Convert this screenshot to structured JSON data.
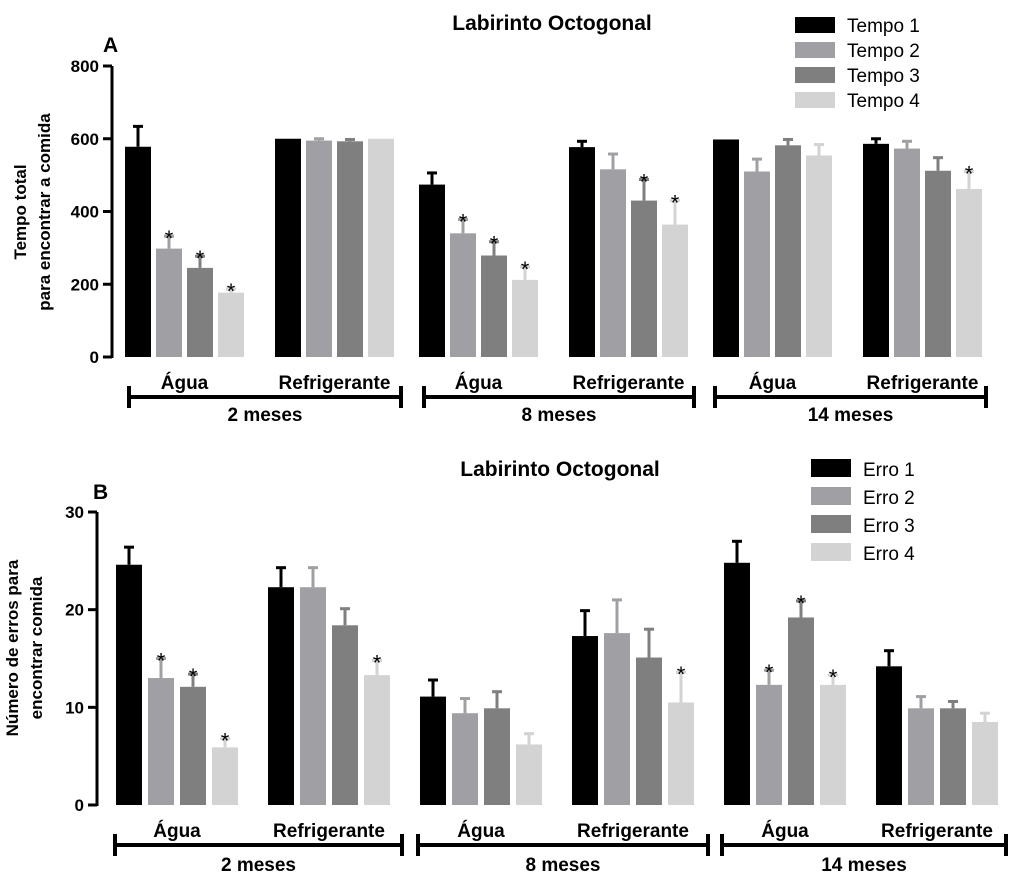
{
  "chart_data": [
    {
      "type": "bar",
      "panel": "A",
      "title": "Labirinto Octogonal",
      "ylabel": [
        "Tempo total",
        "para encontrar a comida"
      ],
      "ylim": [
        0,
        800
      ],
      "yticks": [
        0,
        200,
        400,
        600,
        800
      ],
      "categories": [
        "Água",
        "Refrigerante",
        "Água",
        "Refrigerante",
        "Água",
        "Refrigerante"
      ],
      "groups": [
        {
          "label": "2 meses",
          "categories": [
            0,
            1
          ]
        },
        {
          "label": "8 meses",
          "categories": [
            2,
            3
          ]
        },
        {
          "label": "14 meses",
          "categories": [
            4,
            5
          ]
        }
      ],
      "legend_position": "top-right",
      "series": [
        {
          "name": "Tempo 1",
          "color": "#000000",
          "values": [
            578,
            600,
            474,
            577,
            598,
            586
          ],
          "errors": [
            56,
            0,
            32,
            16,
            0,
            14
          ],
          "significant": [
            false,
            false,
            false,
            false,
            false,
            false
          ]
        },
        {
          "name": "Tempo 2",
          "color": "#a0a0a4",
          "values": [
            298,
            595,
            340,
            516,
            510,
            573
          ],
          "errors": [
            34,
            5,
            38,
            42,
            34,
            20
          ],
          "significant": [
            true,
            false,
            true,
            false,
            false,
            false
          ]
        },
        {
          "name": "Tempo 3",
          "color": "#7f7f7f",
          "values": [
            245,
            593,
            279,
            430,
            582,
            512
          ],
          "errors": [
            32,
            5,
            38,
            58,
            16,
            36
          ],
          "significant": [
            true,
            false,
            true,
            true,
            false,
            false
          ]
        },
        {
          "name": "Tempo 4",
          "color": "#d3d3d3",
          "values": [
            177,
            600,
            212,
            364,
            554,
            462
          ],
          "errors": [
            10,
            0,
            36,
            66,
            30,
            48
          ],
          "significant": [
            true,
            false,
            true,
            true,
            false,
            true
          ]
        }
      ]
    },
    {
      "type": "bar",
      "panel": "B",
      "title": "Labirinto Octogonal",
      "ylabel": [
        "Número de erros para",
        "encontrar comida"
      ],
      "ylim": [
        0,
        30
      ],
      "yticks": [
        0,
        10,
        20,
        30
      ],
      "categories": [
        "Água",
        "Refrigerante",
        "Água",
        "Refrigerante",
        "Água",
        "Refrigerante"
      ],
      "groups": [
        {
          "label": "2 meses",
          "categories": [
            0,
            1
          ]
        },
        {
          "label": "8 meses",
          "categories": [
            2,
            3
          ]
        },
        {
          "label": "14 meses",
          "categories": [
            4,
            5
          ]
        }
      ],
      "legend_position": "top-right",
      "series": [
        {
          "name": "Erro 1",
          "color": "#000000",
          "values": [
            24.6,
            22.3,
            11.1,
            17.3,
            24.8,
            14.2
          ],
          "errors": [
            1.8,
            2.0,
            1.7,
            2.6,
            2.2,
            1.6
          ],
          "significant": [
            false,
            false,
            false,
            false,
            false,
            false
          ]
        },
        {
          "name": "Erro 2",
          "color": "#a0a0a4",
          "values": [
            13.0,
            22.3,
            9.4,
            17.6,
            12.3,
            9.9
          ],
          "errors": [
            2.0,
            2.0,
            1.5,
            3.4,
            1.5,
            1.2
          ],
          "significant": [
            true,
            false,
            false,
            false,
            true,
            false
          ]
        },
        {
          "name": "Erro 3",
          "color": "#7f7f7f",
          "values": [
            12.1,
            18.4,
            9.9,
            15.1,
            19.2,
            9.9
          ],
          "errors": [
            1.3,
            1.7,
            1.7,
            2.9,
            1.7,
            0.7
          ],
          "significant": [
            true,
            false,
            false,
            false,
            true,
            false
          ]
        },
        {
          "name": "Erro 4",
          "color": "#d3d3d3",
          "values": [
            5.9,
            13.3,
            6.2,
            10.5,
            12.3,
            8.5
          ],
          "errors": [
            0.9,
            1.5,
            1.1,
            3.1,
            1.0,
            0.9
          ],
          "significant": [
            true,
            true,
            false,
            true,
            true,
            false
          ]
        }
      ]
    }
  ]
}
